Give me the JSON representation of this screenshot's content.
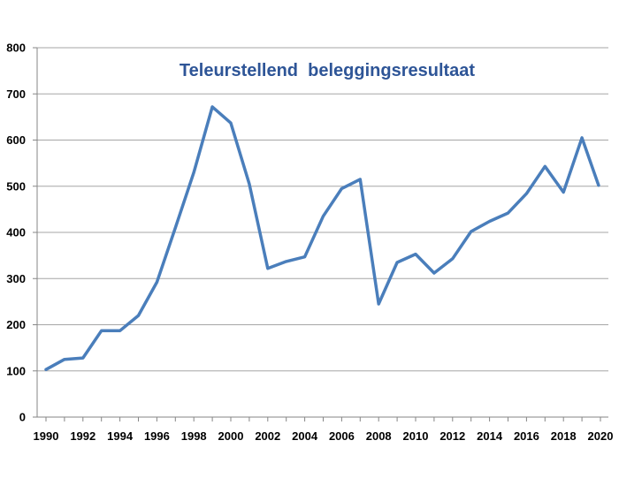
{
  "chart_data": {
    "type": "line",
    "title": "Teleurstellend  beleggingsresultaat",
    "xlabel": "",
    "ylabel": "",
    "xlim": [
      1990,
      2020
    ],
    "ylim": [
      0,
      800
    ],
    "y_ticks": [
      0,
      100,
      200,
      300,
      400,
      500,
      600,
      700,
      800
    ],
    "x_ticks": [
      1990,
      1992,
      1994,
      1996,
      1998,
      2000,
      2002,
      2004,
      2006,
      2008,
      2010,
      2012,
      2014,
      2016,
      2018,
      2020
    ],
    "y_tick_labels": [
      "0",
      "100",
      "200",
      "300",
      "400",
      "500",
      "600",
      "700",
      "800"
    ],
    "x_tick_labels": [
      "1990",
      "1992",
      "1994",
      "1996",
      "1998",
      "2000",
      "2002",
      "2004",
      "2006",
      "2008",
      "2010",
      "2012",
      "2014",
      "2016",
      "2018",
      "2020"
    ],
    "grid": true,
    "legend": "none",
    "colors": {
      "series": "#4a7ebb",
      "title": "#2e5597"
    },
    "series": [
      {
        "x": [
          1990,
          1991,
          1992,
          1993,
          1994,
          1995,
          1996,
          1997,
          1998,
          1999,
          2000,
          2001,
          2002,
          2003,
          2004,
          2005,
          2006,
          2007,
          2008,
          2009,
          2010,
          2011,
          2012,
          2013,
          2014,
          2015,
          2016,
          2017,
          2018,
          2019,
          2019.9
        ],
        "values": [
          103,
          125,
          128,
          187,
          187,
          220,
          292,
          410,
          530,
          672,
          637,
          505,
          322,
          337,
          347,
          435,
          495,
          515,
          245,
          335,
          353,
          312,
          343,
          402,
          424,
          442,
          484,
          543,
          487,
          605,
          502
        ]
      }
    ]
  }
}
